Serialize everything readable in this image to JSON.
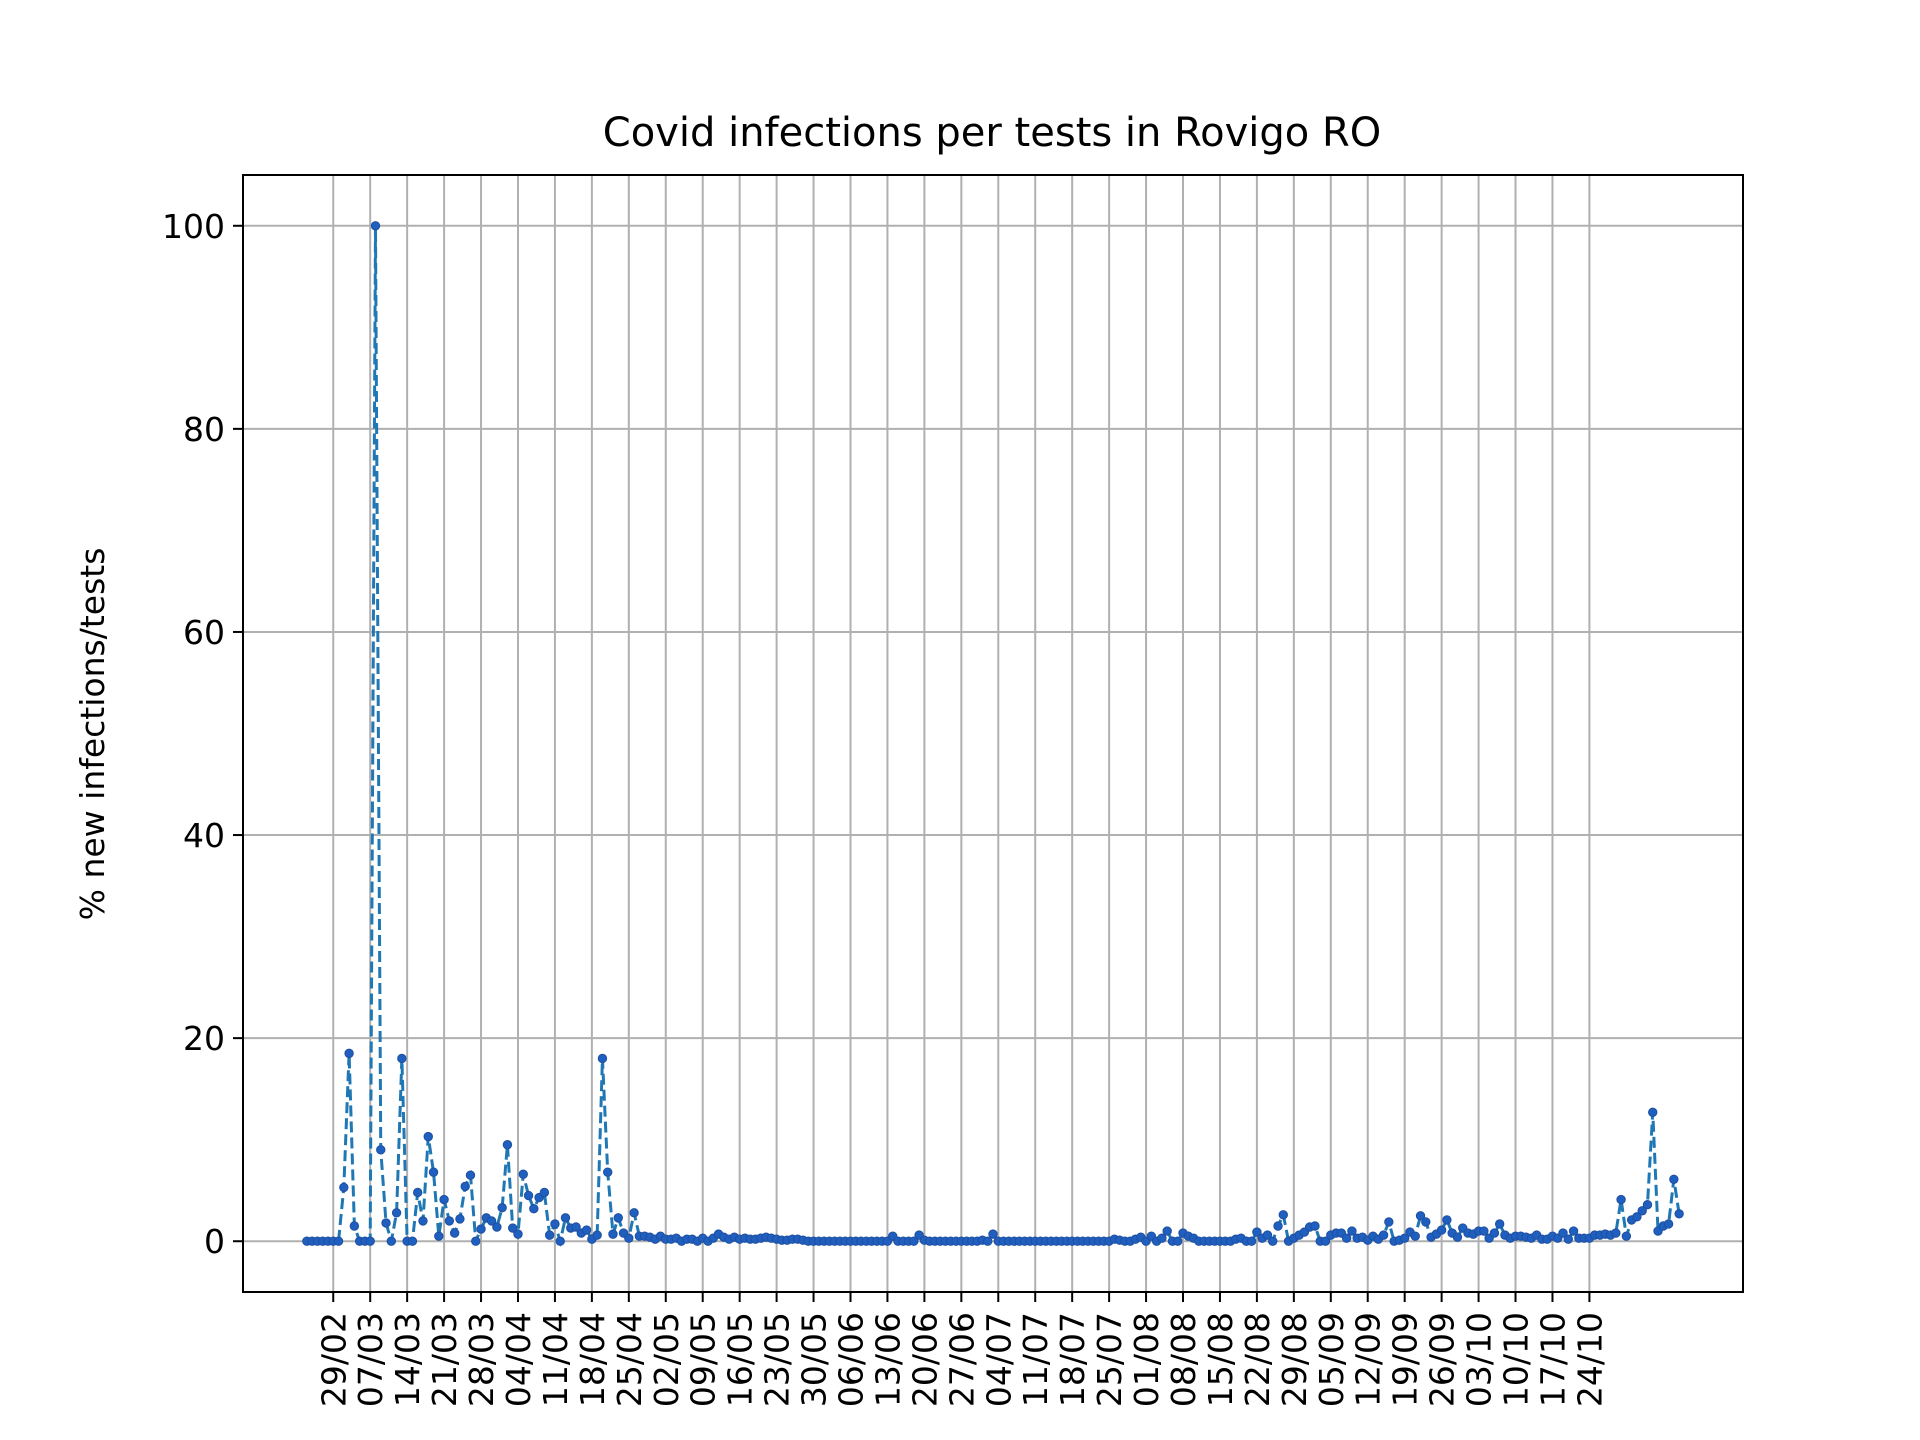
{
  "chart_data": {
    "type": "line",
    "title": "Covid infections per tests in Rovigo RO",
    "xlabel": "",
    "ylabel": "% new infections/tests",
    "ylim": [
      -5,
      105
    ],
    "yticks": [
      0,
      20,
      40,
      60,
      80,
      100
    ],
    "x_start": "24/02",
    "x_step_days": 1,
    "xticks": [
      "29/02",
      "07/03",
      "14/03",
      "21/03",
      "28/03",
      "04/04",
      "11/04",
      "18/04",
      "25/04",
      "02/05",
      "09/05",
      "16/05",
      "23/05",
      "30/05",
      "06/06",
      "13/06",
      "20/06",
      "27/06",
      "04/07",
      "11/07",
      "18/07",
      "25/07",
      "01/08",
      "08/08",
      "15/08",
      "22/08",
      "29/08",
      "05/09",
      "12/09",
      "19/09",
      "26/09",
      "03/10",
      "10/10",
      "17/10",
      "24/10"
    ],
    "grid": true,
    "line_style": "dashed",
    "marker": "dot",
    "colors": {
      "line": "#1f77b4",
      "marker": "#1f5fbf",
      "grid": "#b0b0b0"
    },
    "series": [
      {
        "values": [
          0,
          0,
          0,
          0,
          0,
          0,
          0,
          5.3,
          18.5,
          1.5,
          0,
          0,
          0,
          100,
          9,
          1.8,
          0,
          2.8,
          18,
          0,
          0,
          4.8,
          2,
          10.3,
          6.8,
          0.5,
          4.1,
          2,
          0.8,
          2.2,
          5.4,
          6.5,
          0,
          1.2,
          2.3,
          2,
          1.4,
          3.3,
          9.5,
          1.3,
          0.7,
          6.6,
          4.5,
          3.2,
          4.3,
          4.8,
          0.6,
          1.7,
          0,
          2.3,
          1.3,
          1.4,
          0.8,
          1.1,
          0.2,
          0.6,
          18,
          6.8,
          0.7,
          2.3,
          0.8,
          0.3,
          2.8,
          0.5,
          0.5,
          0.4,
          0.2,
          0.5,
          0.2,
          0.2,
          0.3,
          0,
          0.2,
          0.2,
          0,
          0.3,
          0,
          0.3,
          0.7,
          0.4,
          0.2,
          0.4,
          0.2,
          0.3,
          0.2,
          0.2,
          0.3,
          0.4,
          0.3,
          0.2,
          0.1,
          0.1,
          0.2,
          0.2,
          0.1,
          0,
          0,
          0,
          0,
          0,
          0,
          0,
          0,
          0,
          0,
          0,
          0,
          0,
          0,
          0,
          0,
          0.5,
          0,
          0,
          0,
          0,
          0.6,
          0.1,
          0,
          0,
          0,
          0,
          0,
          0,
          0,
          0,
          0,
          0,
          0.1,
          0,
          0.7,
          0,
          0,
          0,
          0,
          0,
          0,
          0,
          0,
          0,
          0,
          0,
          0,
          0,
          0,
          0,
          0,
          0,
          0,
          0,
          0,
          0,
          0,
          0.2,
          0.1,
          0,
          0,
          0.2,
          0.4,
          0,
          0.5,
          0,
          0.3,
          1,
          0,
          0,
          0.8,
          0.5,
          0.3,
          0,
          0,
          0,
          0,
          0,
          0,
          0,
          0.2,
          0.3,
          0,
          0,
          0.9,
          0.3,
          0.6,
          0,
          1.5,
          2.6,
          0,
          0.3,
          0.6,
          0.9,
          1.4,
          1.5,
          0,
          0,
          0.6,
          0.8,
          0.8,
          0.3,
          1,
          0.3,
          0.4,
          0.1,
          0.5,
          0.2,
          0.6,
          1.9,
          0,
          0.1,
          0.3,
          0.9,
          0.5,
          2.5,
          1.9,
          0.4,
          0.7,
          1.1,
          2.1,
          0.8,
          0.4,
          1.3,
          0.8,
          0.7,
          1,
          1,
          0.3,
          0.8,
          1.7,
          0.6,
          0.3,
          0.5,
          0.5,
          0.4,
          0.3,
          0.6,
          0.2,
          0.2,
          0.5,
          0.3,
          0.8,
          0.2,
          1,
          0.3,
          0.3,
          0.3,
          0.6,
          0.6,
          0.7,
          0.6,
          0.8,
          4.1,
          0.5,
          2.1,
          2.4,
          3,
          3.6,
          12.7,
          1,
          1.5,
          1.7,
          6.1,
          2.7
        ]
      }
    ]
  }
}
